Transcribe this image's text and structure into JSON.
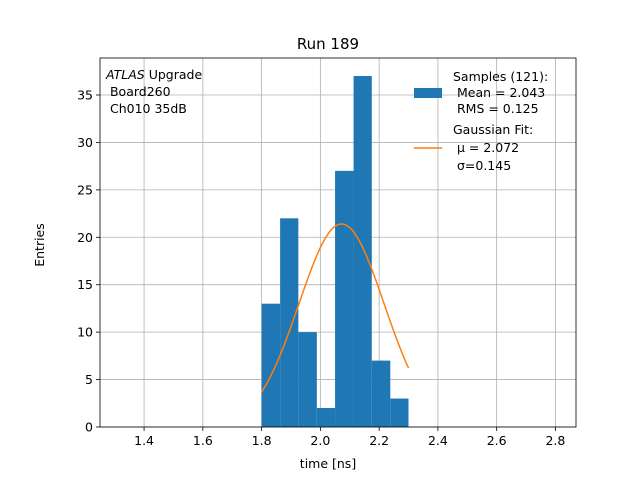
{
  "chart_data": {
    "type": "bar",
    "title": "Run 189",
    "xlabel": "time [ns]",
    "ylabel": "Entries",
    "xlim": [
      1.25,
      2.87
    ],
    "ylim": [
      0,
      38.9
    ],
    "grid": true,
    "xticks": [
      1.4,
      1.6,
      1.8,
      2.0,
      2.2,
      2.4,
      2.6,
      2.8
    ],
    "xtick_labels": [
      "1.4",
      "1.6",
      "1.8",
      "2.0",
      "2.2",
      "2.4",
      "2.6",
      "2.8"
    ],
    "yticks": [
      0,
      5,
      10,
      15,
      20,
      25,
      30,
      35
    ],
    "ytick_labels": [
      "0",
      "5",
      "10",
      "15",
      "20",
      "25",
      "30",
      "35"
    ],
    "histogram": {
      "name": "Samples",
      "color": "#1f77b4",
      "bin_edges": [
        1.8,
        1.863,
        1.925,
        1.988,
        2.05,
        2.113,
        2.175,
        2.238,
        2.3
      ],
      "counts": [
        13,
        22,
        10,
        2,
        27,
        37,
        7,
        3
      ]
    },
    "fit": {
      "name": "Gaussian Fit",
      "color": "#ff7f0e",
      "mu": 2.072,
      "sigma": 0.145,
      "amplitude": 21.4,
      "x_range": [
        1.8,
        2.3
      ]
    },
    "legend": {
      "position": "top-right",
      "samples_lines": [
        "Samples (121):",
        " Mean = 2.043",
        " RMS = 0.125"
      ],
      "fit_lines": [
        "Gaussian Fit:",
        " μ = 2.072",
        " σ=0.145"
      ]
    },
    "annotation": {
      "experiment": "ATLAS",
      "line1_rest": " Upgrade",
      "line2": " Board260",
      "line3": " Ch010 35dB"
    }
  }
}
